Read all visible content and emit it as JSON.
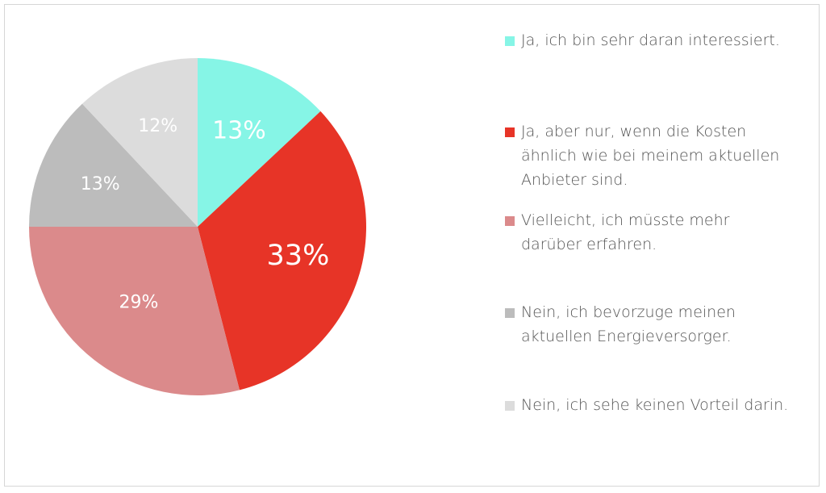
{
  "chart_data": {
    "type": "pie",
    "title": "",
    "start_angle_deg": 0,
    "direction": "clockwise",
    "categories": [
      "Ja, ich bin sehr daran interessiert.",
      "Ja, aber nur, wenn die Kosten ähnlich wie bei meinem aktuellen Anbieter sind.",
      "Vielleicht, ich müsste mehr darüber erfahren.",
      "Nein, ich bevorzuge meinen aktuellen Energieversorger.",
      "Nein, ich sehe keinen Vorteil darin."
    ],
    "values": [
      13,
      33,
      29,
      13,
      12
    ],
    "data_labels": [
      "13%",
      "33%",
      "29%",
      "13%",
      "12%"
    ],
    "colors": [
      "#86f5e6",
      "#e73427",
      "#db8a8b",
      "#bcbcbc",
      "#dcdcdc"
    ],
    "label_colors": [
      "#ffffff",
      "#ffffff",
      "#ffffff",
      "#ffffff",
      "#ffffff"
    ],
    "legend_placement": "right"
  },
  "legend": {
    "items": [
      {
        "lines": [
          "Ja, ich bin sehr daran interessiert."
        ]
      },
      {
        "lines": [
          "Ja, aber nur, wenn die Kosten",
          "ähnlich wie bei meinem aktuellen",
          "Anbieter sind."
        ]
      },
      {
        "lines": [
          "Vielleicht, ich müsste mehr",
          "darüber erfahren."
        ]
      },
      {
        "lines": [
          "Nein, ich bevorzuge meinen",
          "aktuellen Energieversorger."
        ]
      },
      {
        "lines": [
          "Nein, ich sehe keinen Vorteil darin."
        ]
      }
    ]
  }
}
